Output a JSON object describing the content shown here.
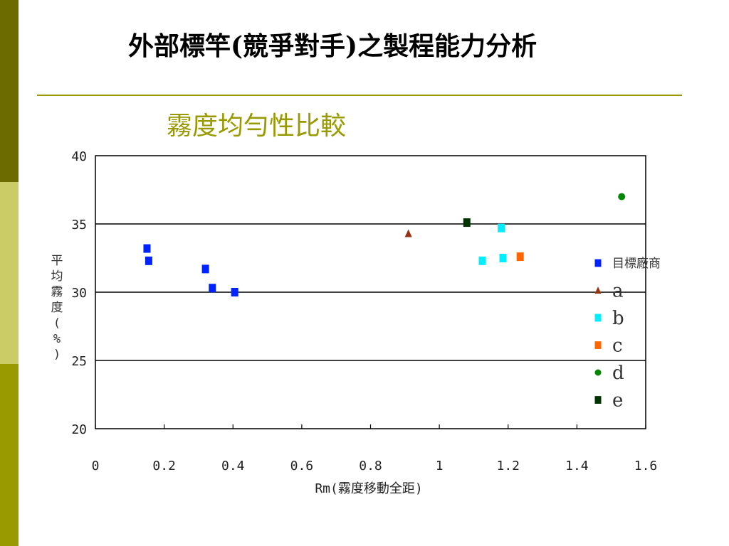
{
  "slide": {
    "title": "外部標竿(競爭對手)之製程能力分析",
    "subtitle": "霧度均勻性比較"
  },
  "colors": {
    "sidebar_dark": "#6b6b00",
    "sidebar_light": "#cccc66",
    "sidebar_mid": "#999900",
    "accent": "#999900",
    "subtitle": "#999900"
  },
  "chart_data": {
    "type": "scatter",
    "xlabel": "Rm(霧度移動全距)",
    "ylabel": "平均霧度(%)",
    "xlim": [
      0,
      1.6
    ],
    "ylim": [
      20,
      40
    ],
    "xticks": [
      "0",
      "0.2",
      "0.4",
      "0.6",
      "0.8",
      "1",
      "1.2",
      "1.4",
      "1.6"
    ],
    "yticks": [
      "20",
      "25",
      "30",
      "35",
      "40"
    ],
    "grid": "horizontal",
    "legend_position": "right",
    "series": [
      {
        "name": "目標廠商",
        "color": "#0022ff",
        "marker": "square",
        "points": [
          [
            0.15,
            33.2
          ],
          [
            0.155,
            32.3
          ],
          [
            0.32,
            31.7
          ],
          [
            0.34,
            30.3
          ],
          [
            0.405,
            30.0
          ]
        ]
      },
      {
        "name": "a",
        "color": "#993311",
        "marker": "triangle",
        "points": [
          [
            0.91,
            34.3
          ]
        ]
      },
      {
        "name": "b",
        "color": "#00eeff",
        "marker": "square",
        "points": [
          [
            1.125,
            32.3
          ],
          [
            1.18,
            34.7
          ],
          [
            1.185,
            32.5
          ]
        ]
      },
      {
        "name": "c",
        "color": "#ff6600",
        "marker": "square",
        "points": [
          [
            1.235,
            32.6
          ]
        ]
      },
      {
        "name": "d",
        "color": "#008800",
        "marker": "circle",
        "points": [
          [
            1.53,
            37.0
          ]
        ]
      },
      {
        "name": "e",
        "color": "#003300",
        "marker": "square",
        "points": [
          [
            1.08,
            35.1
          ]
        ]
      }
    ]
  }
}
